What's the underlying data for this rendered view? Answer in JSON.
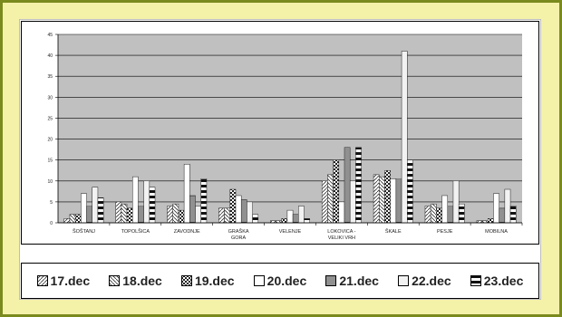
{
  "chart_data": {
    "type": "bar",
    "title": "",
    "xlabel": "",
    "ylabel": "",
    "ylim": [
      0,
      45
    ],
    "yticks": [
      0,
      5,
      10,
      15,
      20,
      25,
      30,
      35,
      40,
      45
    ],
    "grid": true,
    "legend_position": "bottom",
    "plot_background": "#c0c0c0",
    "categories": [
      [
        "ŠOŠTANJ"
      ],
      [
        "TOPOLŠICA"
      ],
      [
        "ZAVODNJE"
      ],
      [
        "GRAŠKA",
        "GORA"
      ],
      [
        "VELENJE"
      ],
      [
        "LOKOVICA -",
        "VELIKI VRH"
      ],
      [
        "ŠKALE"
      ],
      [
        "PESJE"
      ],
      [
        "MOBILNA"
      ]
    ],
    "series": [
      {
        "name": "17.dec",
        "values": [
          1,
          5,
          4,
          3.5,
          0.5,
          10,
          11.5,
          4,
          0.5
        ]
      },
      {
        "name": "18.dec",
        "values": [
          2,
          4.5,
          4.5,
          3.5,
          0.5,
          11.5,
          11,
          4.5,
          0.5
        ]
      },
      {
        "name": "19.dec",
        "values": [
          2,
          3.5,
          3,
          8,
          1,
          15,
          12.5,
          3.5,
          1
        ]
      },
      {
        "name": "20.dec",
        "values": [
          7,
          11,
          14,
          6.5,
          3,
          5,
          10.5,
          6.5,
          7
        ]
      },
      {
        "name": "21.dec",
        "values": [
          4,
          4,
          6.5,
          5.5,
          2,
          18,
          10.5,
          4,
          3.5
        ]
      },
      {
        "name": "22.dec",
        "values": [
          8.5,
          10,
          4,
          5,
          4,
          10,
          41,
          10,
          8
        ]
      },
      {
        "name": "23.dec",
        "values": [
          6,
          8.5,
          10.5,
          2,
          1,
          18,
          15,
          4.5,
          4
        ]
      }
    ]
  },
  "legend": [
    {
      "label": "17.dec"
    },
    {
      "label": "18.dec"
    },
    {
      "label": "19.dec"
    },
    {
      "label": "20.dec"
    },
    {
      "label": "21.dec"
    },
    {
      "label": "22.dec"
    },
    {
      "label": "23.dec"
    }
  ]
}
